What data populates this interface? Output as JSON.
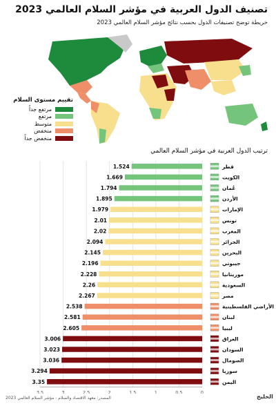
{
  "title": "تصنيف الدول العربية في مؤشر السلام العالمي 2023",
  "subtitle": "خريطة توضح تصنيفات الدول بحسب نتائج مؤشر السلام العالمي 2023",
  "legend": {
    "title": "تقييم مستوى السلام",
    "items": [
      {
        "label": "مرتفع جداً",
        "color": "#1e8a3c"
      },
      {
        "label": "مرتفع",
        "color": "#74c47c"
      },
      {
        "label": "متوسط",
        "color": "#f7df8e"
      },
      {
        "label": "منخفض",
        "color": "#ef8f6a"
      },
      {
        "label": "منخفض جداً",
        "color": "#7f0d10"
      }
    ]
  },
  "colors": {
    "high": "#74c47c",
    "medium": "#f7df8e",
    "low": "#ef8f6a",
    "very_low": "#7f0d10",
    "very_high": "#1e8a3c",
    "no_data": "#c9c9c9",
    "ocean": "#ffffff"
  },
  "map_icons": [
    "world-map-icon"
  ],
  "chart_data": {
    "type": "bar",
    "orientation": "horizontal",
    "title": "ترتيب الدول العربية في مؤشر السلام العالمي",
    "categories": [
      "قطر",
      "الكويت",
      "عُمان",
      "الأردن",
      "الإمارات",
      "تونس",
      "المغرب",
      "الجزائر",
      "البحرين",
      "جيبوتي",
      "موريتانيا",
      "السعودية",
      "مصر",
      "الأراضي الفلسطينية",
      "لبنان",
      "ليبيا",
      "العراق",
      "السودان",
      "الصومال",
      "سوريا",
      "اليمن"
    ],
    "values": [
      1.524,
      1.669,
      1.794,
      1.895,
      1.979,
      2.01,
      2.02,
      2.094,
      2.145,
      2.196,
      2.228,
      2.26,
      2.267,
      2.538,
      2.581,
      2.605,
      3.006,
      3.023,
      3.036,
      3.294,
      3.35
    ],
    "value_labels": [
      "1.524",
      "1.669",
      "1.794",
      "1.895",
      "1.979",
      "2.01",
      "2.02",
      "2.094",
      "2.145",
      "2.196",
      "2.228",
      "2.26",
      "2.267",
      "2.538",
      "2.581",
      "2.605",
      "3.006",
      "3.023",
      "3.036",
      "3.294",
      "3.35"
    ],
    "levels": [
      "high",
      "high",
      "high",
      "high",
      "medium",
      "medium",
      "medium",
      "medium",
      "medium",
      "medium",
      "medium",
      "medium",
      "medium",
      "low",
      "low",
      "low",
      "very_low",
      "very_low",
      "very_low",
      "very_low",
      "very_low"
    ],
    "xlim": [
      0,
      3.5
    ],
    "xticks": [
      "3.5",
      "3",
      "2.5",
      "2",
      "1.5",
      "1",
      "0.5",
      "0"
    ],
    "xtick_values": [
      3.5,
      3,
      2.5,
      2,
      1.5,
      1,
      0.5,
      0
    ],
    "grid": true,
    "flags": [
      "qatar-flag-icon",
      "kuwait-flag-icon",
      "oman-flag-icon",
      "jordan-flag-icon",
      "uae-flag-icon",
      "tunisia-flag-icon",
      "morocco-flag-icon",
      "algeria-flag-icon",
      "bahrain-flag-icon",
      "djibouti-flag-icon",
      "mauritania-flag-icon",
      "saudi-flag-icon",
      "egypt-flag-icon",
      "palestine-flag-icon",
      "lebanon-flag-icon",
      "libya-flag-icon",
      "iraq-flag-icon",
      "sudan-flag-icon",
      "somalia-flag-icon",
      "syria-flag-icon",
      "yemen-flag-icon"
    ]
  },
  "footer": {
    "source": "المصدر: معهد الاقتصاد والسلام - مؤشر السلام العالمي 2023",
    "logo": "الخليج"
  }
}
